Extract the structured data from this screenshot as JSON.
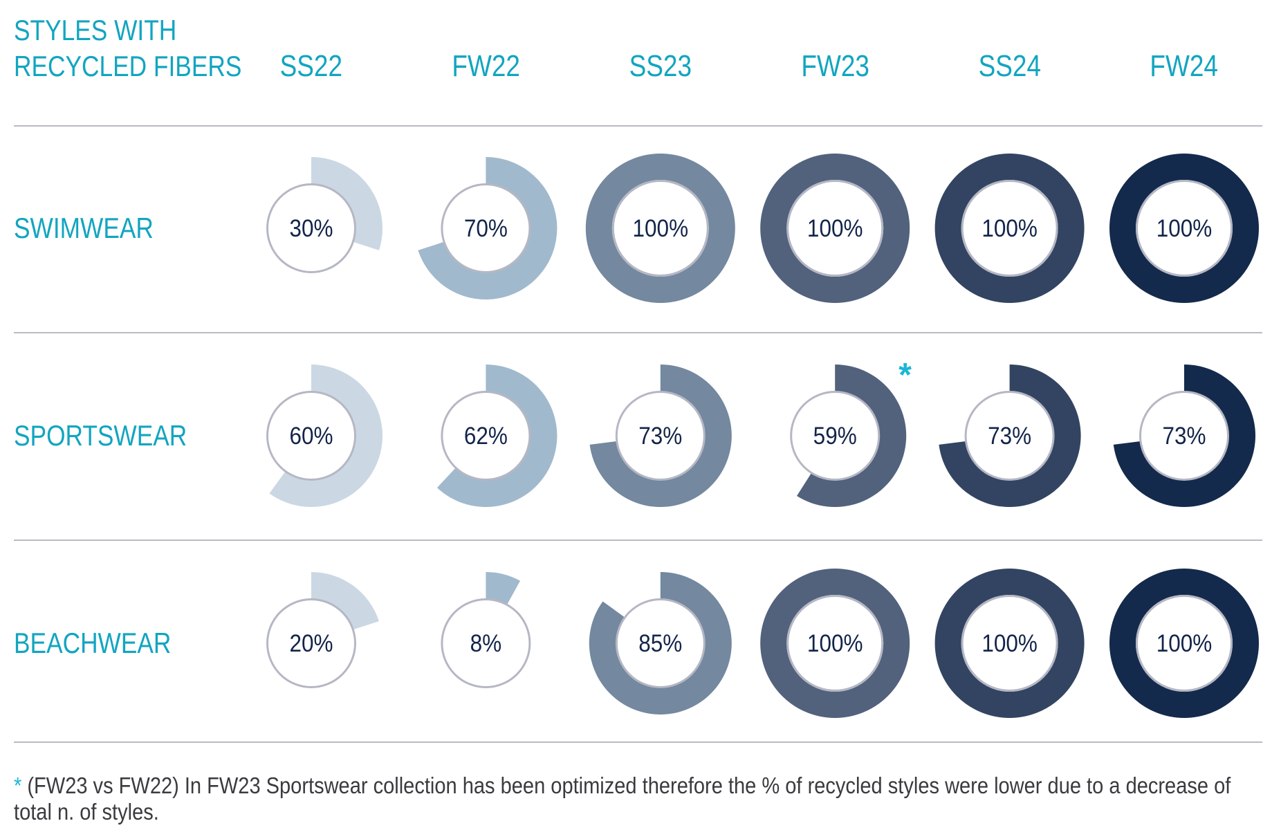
{
  "header": {
    "title_line1": "STYLES WITH",
    "title_line2": "RECYCLED FIBERS"
  },
  "footnote": {
    "marker": "*",
    "text": " (FW23 vs FW22) In FW23 Sportswear collection has been optimized therefore the % of recycled styles were lower due to a decrease of total n. of  styles."
  },
  "colors": {
    "accent": "#12a5c0",
    "asterisk": "#1ab6d8",
    "label_text": "#13244a",
    "inner_ring": "#b5b7c4",
    "season_colors": [
      "#cbd8e3",
      "#a1b9cd",
      "#74889f",
      "#52627d",
      "#324461",
      "#142a4c"
    ]
  },
  "chart_data": {
    "type": "donut-grid",
    "title": "STYLES WITH RECYCLED FIBERS",
    "unit": "%",
    "categories": [
      "SS22",
      "FW22",
      "SS23",
      "FW23",
      "SS24",
      "FW24"
    ],
    "series": [
      {
        "name": "SWIMWEAR",
        "values": [
          30,
          70,
          100,
          100,
          100,
          100
        ],
        "labels": [
          "30%",
          "70%",
          "100%",
          "100%",
          "100%",
          "100%"
        ]
      },
      {
        "name": "SPORTSWEAR",
        "values": [
          60,
          62,
          73,
          59,
          73,
          73
        ],
        "labels": [
          "60%",
          "62%",
          "73%",
          "59%",
          "73%",
          "73%"
        ],
        "annotations": [
          {
            "category": "FW23",
            "marker": "*"
          }
        ]
      },
      {
        "name": "BEACHWEAR",
        "values": [
          20,
          8,
          85,
          100,
          100,
          100
        ],
        "labels": [
          "20%",
          "8%",
          "85%",
          "100%",
          "100%",
          "100%"
        ]
      }
    ],
    "range": [
      0,
      100
    ]
  }
}
